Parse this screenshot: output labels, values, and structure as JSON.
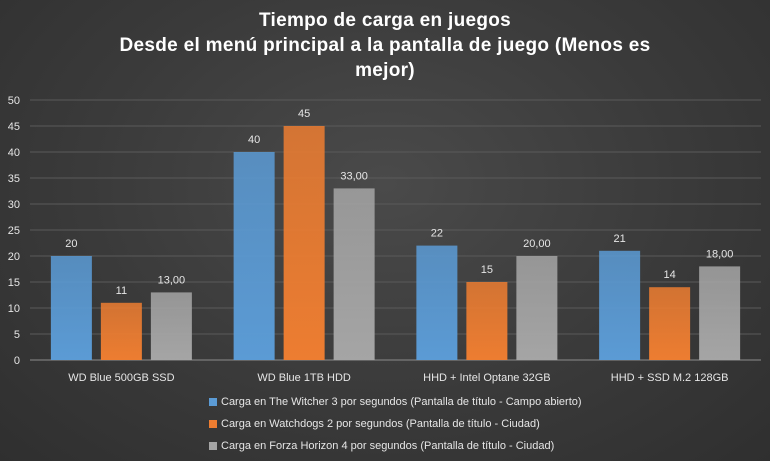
{
  "chart_data": {
    "type": "bar",
    "title_lines": [
      "Tiempo de carga en juegos",
      "Desde el menú principal a la pantalla de juego (Menos es",
      "mejor)"
    ],
    "categories": [
      "WD Blue 500GB SSD",
      "WD Blue 1TB HDD",
      "HHD + Intel Optane 32GB",
      "HHD + SSD M.2 128GB"
    ],
    "series": [
      {
        "name": "Carga en The Witcher 3 por segundos (Pantalla de título - Campo abierto)",
        "values": [
          20,
          40,
          22,
          21
        ],
        "labels": [
          "20",
          "40",
          "22",
          "21"
        ],
        "color": "#5b9bd5"
      },
      {
        "name": "Carga en Watchdogs 2 por segundos (Pantalla de título - Ciudad)",
        "values": [
          11,
          45,
          15,
          14
        ],
        "labels": [
          "11",
          "45",
          "15",
          "14"
        ],
        "color": "#ed7d31"
      },
      {
        "name": "Carga en Forza Horizon 4 por segundos (Pantalla de título - Ciudad)",
        "values": [
          13,
          33,
          20,
          18
        ],
        "labels": [
          "13,00",
          "33,00",
          "20,00",
          "18,00"
        ],
        "color": "#a5a5a5"
      }
    ],
    "y_ticks": [
      "0",
      "5",
      "10",
      "15",
      "20",
      "25",
      "30",
      "35",
      "40",
      "45",
      "50"
    ],
    "ylim": [
      0,
      50
    ],
    "grid": true,
    "legend_position": "bottom"
  }
}
